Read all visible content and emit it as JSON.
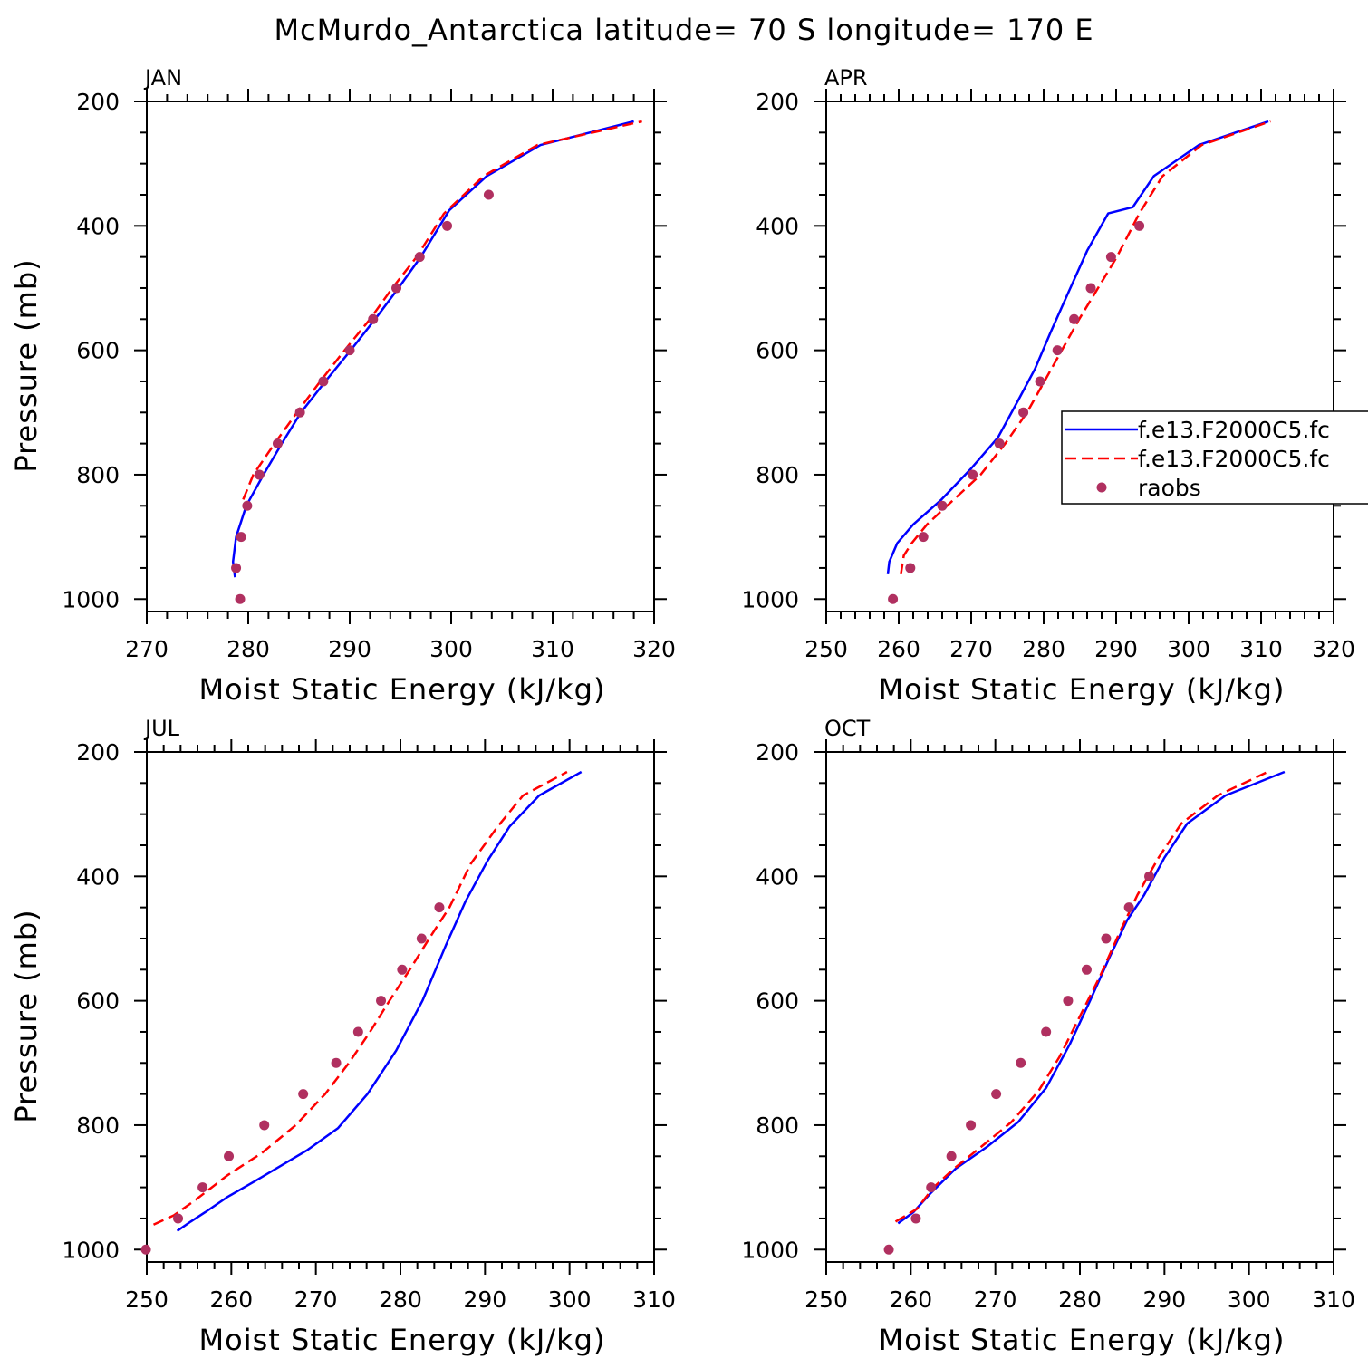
{
  "figure": {
    "title": "McMurdo_Antarctica  latitude= 70 S longitude= 170 E"
  },
  "colors": {
    "model_1": "#0000ff",
    "model_2": "#ff0000",
    "raobs": "#b03060"
  },
  "chart_data": [
    {
      "type": "line",
      "panel": "JAN",
      "title": "JAN",
      "xlabel": "Moist Static Energy (kJ/kg)",
      "ylabel": "Pressure (mb)",
      "xlim": [
        270,
        320
      ],
      "ylim": [
        1020,
        200
      ],
      "xticks": [
        270,
        280,
        290,
        300,
        310,
        320
      ],
      "yticks": [
        200,
        400,
        600,
        800,
        1000
      ],
      "show_ylabel": true,
      "legend": null,
      "series": [
        {
          "name": "f.e13.F2000C5.fc",
          "style": "solid",
          "color": "#0000ff",
          "x": [
            278.7,
            278.5,
            278.8,
            279.8,
            281.5,
            283.3,
            285.2,
            287.6,
            290.1,
            292.5,
            294.8,
            297.0,
            299.8,
            303.5,
            308.8,
            318.0
          ],
          "y": [
            965,
            940,
            900,
            850,
            800,
            750,
            700,
            650,
            600,
            550,
            500,
            450,
            375,
            320,
            270,
            232
          ]
        },
        {
          "name": "f.e13.F2000C5.fc",
          "style": "dashed",
          "color": "#ff0000",
          "x": [
            279.5,
            280.5,
            282.6,
            284.8,
            287.1,
            289.5,
            292.0,
            294.2,
            296.6,
            299.3,
            303.2,
            308.5,
            318.8
          ],
          "y": [
            840,
            800,
            750,
            700,
            650,
            600,
            550,
            500,
            450,
            380,
            320,
            270,
            232
          ]
        },
        {
          "name": "raobs",
          "style": "points",
          "color": "#b03060",
          "x": [
            279.2,
            278.8,
            279.3,
            279.9,
            281.1,
            282.9,
            285.1,
            287.4,
            290.0,
            292.3,
            294.6,
            296.9,
            299.6,
            303.7
          ],
          "y": [
            1000,
            950,
            900,
            850,
            800,
            750,
            700,
            650,
            600,
            550,
            500,
            450,
            400,
            350
          ]
        }
      ]
    },
    {
      "type": "line",
      "panel": "APR",
      "title": "APR",
      "xlabel": "Moist Static Energy (kJ/kg)",
      "ylabel": "Pressure (mb)",
      "xlim": [
        250,
        320
      ],
      "ylim": [
        1020,
        200
      ],
      "xticks": [
        250,
        260,
        270,
        280,
        290,
        300,
        310,
        320
      ],
      "yticks": [
        200,
        400,
        600,
        800,
        1000
      ],
      "show_ylabel": false,
      "legend": {
        "placement": "right",
        "entries": [
          {
            "label": "f.e13.F2000C5.fc",
            "style": "solid",
            "color": "#0000ff"
          },
          {
            "label": "f.e13.F2000C5.fc",
            "style": "dashed",
            "color": "#ff0000"
          },
          {
            "label": "raobs",
            "style": "points",
            "color": "#b03060"
          }
        ]
      },
      "series": [
        {
          "name": "f.e13.F2000C5.fc",
          "style": "solid",
          "color": "#0000ff",
          "x": [
            258.5,
            258.7,
            259.8,
            262.0,
            265.9,
            270.0,
            273.7,
            276.5,
            278.8,
            281.0,
            283.3,
            286.0,
            288.9,
            292.3,
            295.2,
            301.4,
            311.0
          ],
          "y": [
            960,
            940,
            910,
            880,
            840,
            790,
            740,
            680,
            630,
            570,
            510,
            440,
            380,
            370,
            320,
            270,
            232
          ]
        },
        {
          "name": "f.e13.F2000C5.fc",
          "style": "dashed",
          "color": "#ff0000",
          "x": [
            260.3,
            260.7,
            261.8,
            263.9,
            267.6,
            271.3,
            274.7,
            277.7,
            280.1,
            282.5,
            284.9,
            287.5,
            290.1,
            293.2,
            296.4,
            301.8,
            311.3
          ],
          "y": [
            960,
            930,
            910,
            880,
            840,
            800,
            750,
            700,
            650,
            600,
            550,
            500,
            450,
            380,
            320,
            270,
            232
          ]
        },
        {
          "name": "raobs",
          "style": "points",
          "color": "#b03060",
          "x": [
            259.2,
            261.6,
            263.4,
            266.0,
            270.2,
            273.9,
            277.2,
            279.5,
            281.9,
            284.2,
            286.5,
            289.3,
            293.2
          ],
          "y": [
            1000,
            950,
            900,
            850,
            800,
            750,
            700,
            650,
            600,
            550,
            500,
            450,
            400
          ]
        }
      ]
    },
    {
      "type": "line",
      "panel": "JUL",
      "title": "JUL",
      "xlabel": "Moist Static Energy (kJ/kg)",
      "ylabel": "Pressure (mb)",
      "xlim": [
        250,
        310
      ],
      "ylim": [
        1020,
        200
      ],
      "xticks": [
        250,
        260,
        270,
        280,
        290,
        300,
        310
      ],
      "yticks": [
        200,
        400,
        600,
        800,
        1000
      ],
      "show_ylabel": true,
      "legend": null,
      "series": [
        {
          "name": "f.e13.F2000C5.fc",
          "style": "solid",
          "color": "#0000ff",
          "x": [
            253.6,
            255.2,
            256.9,
            259.6,
            262.8,
            265.9,
            269.0,
            272.6,
            276.1,
            279.5,
            282.6,
            285.4,
            287.7,
            290.3,
            292.9,
            296.4,
            301.4
          ],
          "y": [
            970,
            955,
            940,
            915,
            890,
            865,
            840,
            805,
            750,
            680,
            600,
            510,
            440,
            375,
            320,
            270,
            232
          ]
        },
        {
          "name": "f.e13.F2000C5.fc",
          "style": "dashed",
          "color": "#ff0000",
          "x": [
            250.8,
            253.2,
            255.8,
            259.6,
            263.6,
            267.6,
            271.1,
            273.9,
            276.4,
            278.7,
            281.1,
            283.4,
            285.8,
            288.3,
            291.5,
            294.5,
            299.7
          ],
          "y": [
            960,
            945,
            920,
            880,
            845,
            800,
            750,
            700,
            650,
            600,
            550,
            500,
            450,
            380,
            320,
            270,
            232
          ]
        },
        {
          "name": "raobs",
          "style": "points",
          "color": "#b03060",
          "x": [
            249.9,
            253.7,
            256.6,
            259.7,
            263.9,
            268.5,
            272.4,
            275.0,
            277.7,
            280.2,
            282.5,
            284.6
          ],
          "y": [
            1000,
            950,
            900,
            850,
            800,
            750,
            700,
            650,
            600,
            550,
            500,
            450
          ]
        }
      ]
    },
    {
      "type": "line",
      "panel": "OCT",
      "title": "OCT",
      "xlabel": "Moist Static Energy (kJ/kg)",
      "ylabel": "Pressure (mb)",
      "xlim": [
        250,
        310
      ],
      "ylim": [
        1020,
        200
      ],
      "xticks": [
        250,
        260,
        270,
        280,
        290,
        300,
        310
      ],
      "yticks": [
        200,
        400,
        600,
        800,
        1000
      ],
      "show_ylabel": false,
      "legend": null,
      "series": [
        {
          "name": "f.e13.F2000C5.fc",
          "style": "solid",
          "color": "#0000ff",
          "x": [
            258.5,
            260.3,
            262.3,
            265.3,
            269.0,
            272.7,
            276.0,
            278.8,
            281.2,
            283.5,
            285.6,
            287.6,
            290.0,
            292.7,
            297.2,
            304.2
          ],
          "y": [
            958,
            940,
            910,
            870,
            835,
            795,
            740,
            670,
            600,
            530,
            470,
            430,
            370,
            315,
            270,
            232
          ]
        },
        {
          "name": "f.e13.F2000C5.fc",
          "style": "dashed",
          "color": "#ff0000",
          "x": [
            258.2,
            260.7,
            262.7,
            265.1,
            268.3,
            271.9,
            275.1,
            277.6,
            280.0,
            282.4,
            284.7,
            286.8,
            289.3,
            292.0,
            296.3,
            302.2
          ],
          "y": [
            955,
            935,
            900,
            870,
            835,
            795,
            745,
            690,
            625,
            560,
            490,
            430,
            370,
            315,
            270,
            232
          ]
        },
        {
          "name": "raobs",
          "style": "points",
          "color": "#b03060",
          "x": [
            257.4,
            260.6,
            262.4,
            264.8,
            267.1,
            270.1,
            273.0,
            276.0,
            278.6,
            280.8,
            283.1,
            285.8,
            288.2
          ],
          "y": [
            1000,
            950,
            900,
            850,
            800,
            750,
            700,
            650,
            600,
            550,
            500,
            450,
            400
          ]
        }
      ]
    }
  ]
}
